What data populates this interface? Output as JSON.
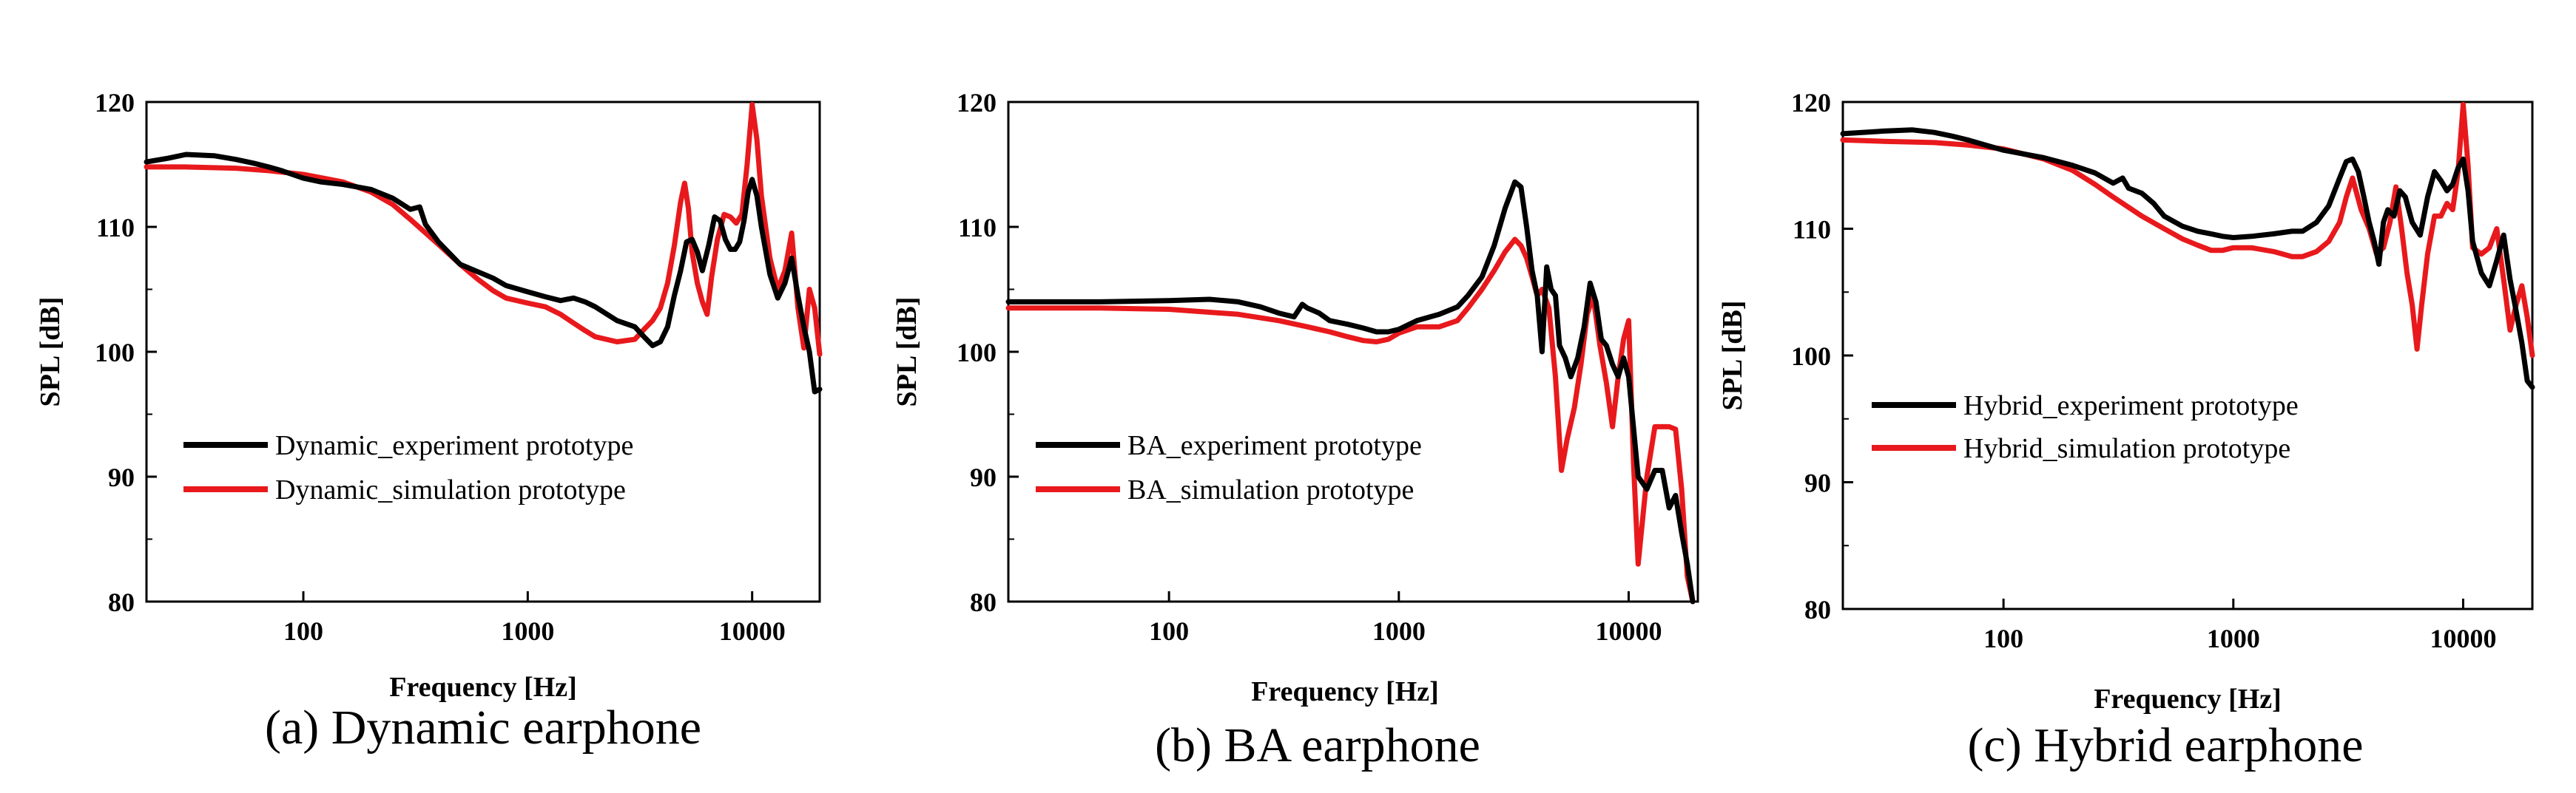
{
  "colors": {
    "experiment": "#000000",
    "simulation": "#e8191c"
  },
  "chart_data": [
    {
      "type": "line",
      "caption": "(a) Dynamic earphone",
      "xlabel": "Frequency [Hz]",
      "ylabel": "SPL [dB]",
      "xscale": "log",
      "xlim": [
        20,
        20000
      ],
      "ylim": [
        80,
        120
      ],
      "xticks": [
        100,
        1000,
        10000
      ],
      "xtick_labels": [
        "100",
        "1000",
        "10000"
      ],
      "yticks": [
        80,
        90,
        100,
        110,
        120
      ],
      "ytick_labels": [
        "80",
        "90",
        "100",
        "110",
        "120"
      ],
      "grid": false,
      "legend_position": "lower-left",
      "series": [
        {
          "name": "Dynamic_experiment prototype",
          "color": "#000000",
          "x": [
            20,
            25,
            30,
            40,
            50,
            60,
            70,
            80,
            100,
            120,
            150,
            200,
            250,
            300,
            330,
            350,
            400,
            500,
            600,
            700,
            800,
            1000,
            1200,
            1400,
            1600,
            1800,
            2000,
            2500,
            3000,
            3300,
            3600,
            3900,
            4200,
            4500,
            4800,
            5100,
            5400,
            5700,
            6000,
            6400,
            6800,
            7200,
            7600,
            8000,
            8400,
            8800,
            9200,
            9600,
            10000,
            10500,
            11000,
            12000,
            13000,
            14000,
            15000,
            16000,
            17000,
            18000,
            19000,
            20000
          ],
          "y": [
            115.2,
            115.5,
            115.8,
            115.7,
            115.4,
            115.1,
            114.8,
            114.5,
            113.9,
            113.6,
            113.4,
            113.0,
            112.3,
            111.4,
            111.6,
            110.2,
            108.8,
            107.0,
            106.4,
            105.9,
            105.3,
            104.8,
            104.4,
            104.1,
            104.3,
            104.0,
            103.6,
            102.5,
            102.0,
            101.2,
            100.5,
            100.8,
            102.0,
            104.5,
            106.5,
            108.8,
            109.0,
            108.0,
            106.5,
            108.5,
            110.8,
            110.5,
            109.0,
            108.2,
            108.2,
            108.8,
            110.5,
            112.8,
            113.8,
            112.5,
            110.0,
            106.2,
            104.3,
            105.5,
            107.5,
            104.5,
            102.0,
            100.0,
            96.8,
            97.0
          ]
        },
        {
          "name": "Dynamic_simulation prototype",
          "color": "#e8191c",
          "x": [
            20,
            30,
            50,
            70,
            100,
            150,
            200,
            250,
            300,
            400,
            500,
            600,
            700,
            800,
            1000,
            1200,
            1400,
            1600,
            1800,
            2000,
            2500,
            3000,
            3300,
            3600,
            3900,
            4200,
            4500,
            4800,
            5000,
            5200,
            5400,
            5700,
            6000,
            6300,
            6600,
            7000,
            7500,
            8000,
            8500,
            9000,
            9500,
            10000,
            10500,
            11000,
            12000,
            13000,
            14000,
            15000,
            16000,
            17000,
            18000,
            19000,
            20000
          ],
          "y": [
            114.8,
            114.8,
            114.7,
            114.5,
            114.2,
            113.6,
            112.8,
            111.8,
            110.6,
            108.6,
            107.0,
            105.8,
            104.9,
            104.3,
            103.9,
            103.6,
            103.0,
            102.3,
            101.7,
            101.2,
            100.8,
            101.0,
            101.8,
            102.5,
            103.5,
            105.5,
            108.5,
            112.0,
            113.5,
            111.5,
            108.0,
            105.5,
            104.0,
            103.0,
            106.0,
            109.0,
            111.0,
            110.8,
            110.3,
            111.0,
            115.0,
            119.8,
            117.0,
            112.5,
            107.5,
            105.0,
            106.5,
            109.5,
            103.5,
            100.3,
            105.0,
            103.5,
            99.8
          ]
        }
      ]
    },
    {
      "type": "line",
      "caption": "(b) BA earphone",
      "xlabel": "Frequency [Hz]",
      "ylabel": "SPL [dB]",
      "xscale": "log",
      "xlim": [
        20,
        20000
      ],
      "ylim": [
        80,
        120
      ],
      "xticks": [
        100,
        1000,
        10000
      ],
      "xtick_labels": [
        "100",
        "1000",
        "10000"
      ],
      "yticks": [
        80,
        90,
        100,
        110,
        120
      ],
      "ytick_labels": [
        "80",
        "90",
        "100",
        "110",
        "120"
      ],
      "grid": false,
      "legend_position": "lower-left",
      "series": [
        {
          "name": "BA_experiment prototype",
          "color": "#000000",
          "x": [
            20,
            50,
            100,
            150,
            200,
            250,
            300,
            350,
            380,
            400,
            450,
            500,
            600,
            700,
            800,
            900,
            1000,
            1200,
            1500,
            1800,
            2000,
            2300,
            2600,
            2900,
            3200,
            3400,
            3600,
            3800,
            4000,
            4200,
            4400,
            4600,
            4800,
            5000,
            5300,
            5600,
            6000,
            6400,
            6800,
            7200,
            7600,
            8000,
            8500,
            9000,
            9500,
            10000,
            11000,
            12000,
            13000,
            14000,
            15000,
            16000,
            17000,
            18000,
            19000
          ],
          "y": [
            104.0,
            104.0,
            104.1,
            104.2,
            104.0,
            103.6,
            103.1,
            102.8,
            103.8,
            103.5,
            103.1,
            102.5,
            102.2,
            101.9,
            101.6,
            101.6,
            101.8,
            102.5,
            103.0,
            103.6,
            104.5,
            106.0,
            108.5,
            111.5,
            113.6,
            113.2,
            110.0,
            106.5,
            104.5,
            100.0,
            106.8,
            105.0,
            104.5,
            100.5,
            99.5,
            98.0,
            99.5,
            102.0,
            105.5,
            104.0,
            101.0,
            100.5,
            99.0,
            98.0,
            99.5,
            98.0,
            90.0,
            89.0,
            90.5,
            90.5,
            87.5,
            88.5,
            85.5,
            83.0,
            80.0
          ]
        },
        {
          "name": "BA_simulation prototype",
          "color": "#e8191c",
          "x": [
            20,
            50,
            100,
            200,
            300,
            400,
            500,
            600,
            700,
            800,
            900,
            1000,
            1200,
            1500,
            1800,
            2000,
            2300,
            2600,
            2900,
            3200,
            3400,
            3600,
            3800,
            4000,
            4200,
            4500,
            4800,
            5100,
            5400,
            5800,
            6200,
            6600,
            7000,
            7500,
            8000,
            8500,
            9000,
            9500,
            10000,
            10500,
            11000,
            12000,
            13000,
            14000,
            15000,
            16000,
            17000,
            18000,
            19000
          ],
          "y": [
            103.5,
            103.5,
            103.4,
            103.0,
            102.5,
            102.0,
            101.6,
            101.2,
            100.9,
            100.8,
            101.0,
            101.5,
            102.0,
            102.0,
            102.5,
            103.5,
            105.0,
            106.5,
            108.0,
            109.0,
            108.5,
            107.5,
            106.0,
            104.5,
            105.0,
            103.5,
            98.0,
            90.5,
            93.0,
            95.5,
            99.0,
            103.0,
            104.5,
            100.5,
            97.5,
            94.0,
            98.0,
            101.0,
            102.5,
            91.0,
            83.0,
            90.0,
            94.0,
            94.0,
            94.0,
            93.8,
            89.0,
            82.0,
            80.0
          ]
        }
      ]
    },
    {
      "type": "line",
      "caption": "(c) Hybrid earphone",
      "xlabel": "Frequency [Hz]",
      "ylabel": "SPL [dB]",
      "xscale": "log",
      "xlim": [
        20,
        20000
      ],
      "ylim": [
        80,
        120
      ],
      "xticks": [
        100,
        1000,
        10000
      ],
      "xtick_labels": [
        "100",
        "1000",
        "10000"
      ],
      "yticks": [
        80,
        90,
        100,
        110,
        120
      ],
      "ytick_labels": [
        "80",
        "90",
        "100",
        "110",
        "120"
      ],
      "grid": false,
      "legend_position": "center-left",
      "series": [
        {
          "name": "Hybrid_experiment prototype",
          "color": "#000000",
          "x": [
            20,
            30,
            40,
            50,
            60,
            70,
            80,
            100,
            150,
            200,
            250,
            300,
            330,
            350,
            400,
            450,
            500,
            600,
            700,
            800,
            900,
            1000,
            1200,
            1500,
            1800,
            2000,
            2300,
            2600,
            2900,
            3100,
            3300,
            3500,
            3700,
            3900,
            4100,
            4300,
            4500,
            4700,
            5000,
            5300,
            5600,
            6000,
            6500,
            7000,
            7500,
            8000,
            8500,
            9000,
            9500,
            10000,
            10500,
            11000,
            12000,
            13000,
            14000,
            15000,
            16000,
            17000,
            18000,
            19000,
            20000
          ],
          "y": [
            117.5,
            117.7,
            117.8,
            117.6,
            117.3,
            117.0,
            116.7,
            116.2,
            115.6,
            115.0,
            114.4,
            113.6,
            114.0,
            113.2,
            112.8,
            112.0,
            111.0,
            110.2,
            109.8,
            109.6,
            109.4,
            109.3,
            109.4,
            109.6,
            109.8,
            109.8,
            110.5,
            111.8,
            114.0,
            115.3,
            115.5,
            114.5,
            112.5,
            110.5,
            109.0,
            107.2,
            110.5,
            111.5,
            111.0,
            113.0,
            112.5,
            110.5,
            109.5,
            112.5,
            114.5,
            113.8,
            113.0,
            113.5,
            114.8,
            115.5,
            113.0,
            109.0,
            106.5,
            105.5,
            107.5,
            109.5,
            106.0,
            103.5,
            101.0,
            98.0,
            97.5
          ]
        },
        {
          "name": "Hybrid_simulation prototype",
          "color": "#e8191c",
          "x": [
            20,
            30,
            50,
            70,
            100,
            150,
            200,
            250,
            300,
            400,
            500,
            600,
            700,
            800,
            900,
            1000,
            1200,
            1500,
            1800,
            2000,
            2300,
            2600,
            2900,
            3100,
            3300,
            3600,
            3900,
            4200,
            4500,
            4800,
            5100,
            5400,
            5700,
            6000,
            6300,
            6600,
            7000,
            7500,
            8000,
            8500,
            9000,
            9500,
            10000,
            10500,
            11000,
            12000,
            13000,
            14000,
            15000,
            16000,
            17000,
            18000,
            19000,
            20000
          ],
          "y": [
            117.0,
            116.9,
            116.8,
            116.6,
            116.3,
            115.5,
            114.6,
            113.5,
            112.5,
            111.0,
            110.0,
            109.2,
            108.7,
            108.3,
            108.3,
            108.5,
            108.5,
            108.2,
            107.8,
            107.8,
            108.2,
            109.0,
            110.5,
            112.5,
            114.0,
            111.5,
            110.0,
            108.0,
            108.5,
            110.5,
            113.3,
            110.0,
            106.5,
            104.0,
            100.5,
            104.0,
            108.0,
            111.0,
            111.0,
            112.0,
            111.5,
            114.5,
            119.8,
            115.0,
            108.5,
            108.0,
            108.5,
            110.0,
            106.0,
            102.0,
            104.0,
            105.5,
            103.0,
            100.0
          ]
        }
      ]
    }
  ]
}
